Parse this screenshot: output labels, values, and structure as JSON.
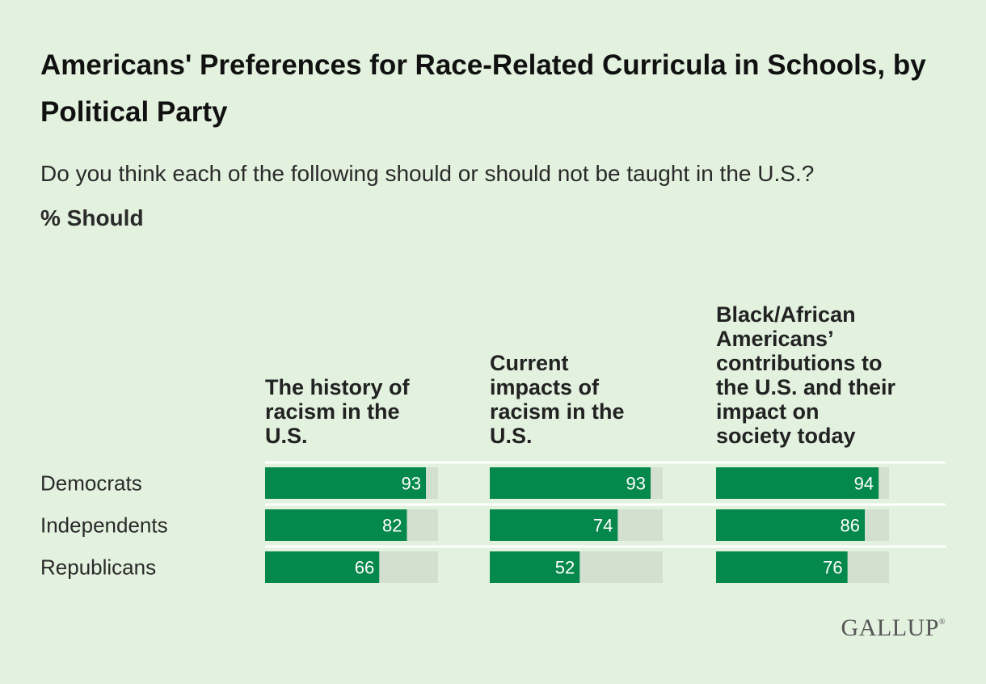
{
  "header": {
    "title": "Americans' Preferences for Race-Related Curricula in Schools, by Political Party",
    "subtitle": "Do you think each of the following should or should not be taught in the U.S.?",
    "unit_label": "% Should"
  },
  "branding": {
    "logo_text": "GALLUP",
    "logo_mark": "®"
  },
  "colors": {
    "background": "#e3f1df",
    "bar": "#05884b",
    "track": "#d3e0cf",
    "separator": "#ffffff"
  },
  "chart_data": {
    "type": "bar",
    "orientation": "horizontal",
    "title": "Americans' Preferences for Race-Related Curricula in Schools, by Political Party",
    "xlim": [
      0,
      100
    ],
    "categories": [
      "Democrats",
      "Independents",
      "Republicans"
    ],
    "series": [
      {
        "name": "The history of racism in the U.S.",
        "name_lines": [
          "The history of",
          "racism in the",
          "U.S."
        ],
        "values": [
          93,
          82,
          66
        ]
      },
      {
        "name": "Current impacts of racism in the U.S.",
        "name_lines": [
          "Current",
          "impacts of",
          "racism in the",
          "U.S."
        ],
        "values": [
          93,
          74,
          52
        ]
      },
      {
        "name": "Black/African Americans’ contributions to the U.S. and their impact on society today",
        "name_lines": [
          "Black/African",
          "Americans’",
          "contributions to",
          "the U.S. and their",
          "impact on",
          "society today"
        ],
        "values": [
          94,
          86,
          76
        ]
      }
    ]
  }
}
